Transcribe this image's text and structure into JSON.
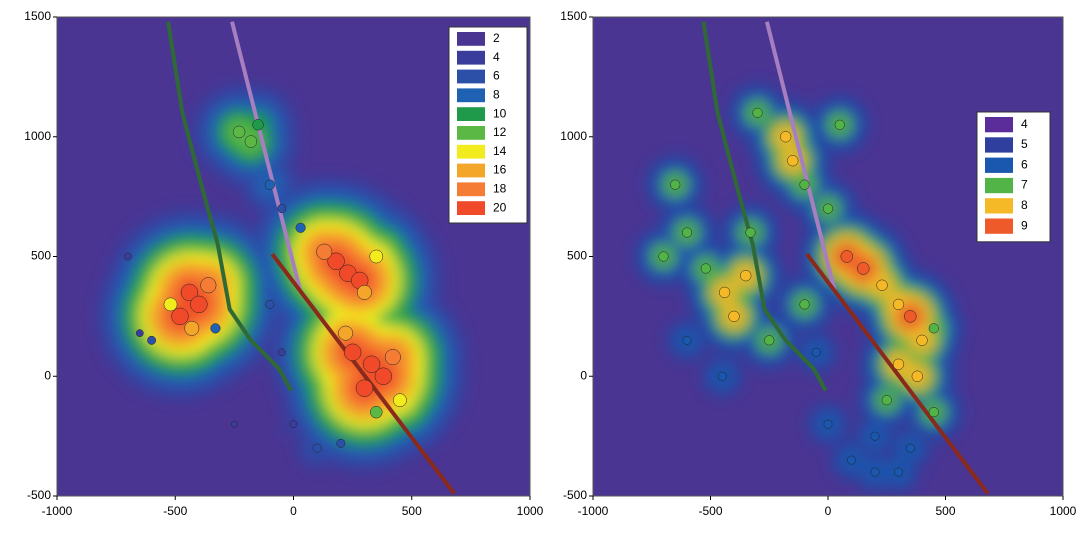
{
  "chart_data": [
    {
      "type": "contour",
      "background": "#4a3593",
      "xlim": [
        -1000,
        1000
      ],
      "ylim": [
        -500,
        1500
      ],
      "xticks": [
        -1000,
        -500,
        0,
        500,
        1000
      ],
      "yticks": [
        -500,
        0,
        500,
        1000,
        1500
      ],
      "levels": [
        2,
        4,
        6,
        8,
        10,
        12,
        14,
        16,
        18,
        20
      ],
      "colors": [
        "#4a3593",
        "#3b3d9c",
        "#2c4fa8",
        "#1f62b3",
        "#1f9a4a",
        "#5cb845",
        "#f2ec1f",
        "#f4a62a",
        "#f47c34",
        "#f04a2a"
      ],
      "wells": [
        {
          "color": "#2f6a36",
          "x": [
            -530,
            -470,
            -390,
            -320,
            -270,
            -180,
            -60,
            -10
          ],
          "y": [
            1480,
            1100,
            800,
            550,
            280,
            150,
            30,
            -60
          ]
        },
        {
          "color": "#a77fc0",
          "x": [
            -260,
            30
          ],
          "y": [
            1480,
            350
          ]
        },
        {
          "color": "#8a2a1c",
          "x": [
            -90,
            680
          ],
          "y": [
            510,
            -490
          ]
        }
      ],
      "events": {
        "x": [
          -440,
          -400,
          -480,
          -360,
          -430,
          -520,
          180,
          230,
          280,
          130,
          300,
          350,
          250,
          330,
          380,
          300,
          420,
          220,
          450,
          350,
          -230,
          -180,
          -150,
          -100,
          -50,
          30,
          -600,
          -700,
          -650,
          -100,
          -50,
          0,
          100,
          200,
          -330,
          -250
        ],
        "y": [
          350,
          300,
          250,
          380,
          200,
          300,
          480,
          430,
          400,
          520,
          350,
          500,
          100,
          50,
          0,
          -50,
          80,
          180,
          -100,
          -150,
          1020,
          980,
          1050,
          800,
          700,
          620,
          150,
          500,
          180,
          300,
          100,
          -200,
          -300,
          -280,
          200,
          -200
        ],
        "values": [
          20,
          20,
          20,
          18,
          16,
          14,
          20,
          20,
          20,
          18,
          16,
          14,
          20,
          20,
          20,
          20,
          18,
          16,
          14,
          12,
          12,
          12,
          10,
          8,
          6,
          8,
          6,
          4,
          4,
          6,
          4,
          4,
          6,
          6,
          8,
          2
        ]
      }
    },
    {
      "type": "contour",
      "background": "#4a3593",
      "xlim": [
        -1000,
        1000
      ],
      "ylim": [
        -500,
        1500
      ],
      "xticks": [
        -1000,
        -500,
        0,
        500,
        1000
      ],
      "yticks": [
        -500,
        0,
        500,
        1000,
        1500
      ],
      "levels": [
        4,
        5,
        6,
        7,
        8,
        9
      ],
      "colors": [
        "#5b2d9a",
        "#2f3f9e",
        "#1a57ae",
        "#52b347",
        "#f5b826",
        "#ef5a2a"
      ],
      "wells": [
        {
          "color": "#2f6a36",
          "x": [
            -530,
            -470,
            -390,
            -320,
            -270,
            -180,
            -60,
            -10
          ],
          "y": [
            1480,
            1100,
            800,
            550,
            280,
            150,
            30,
            -60
          ]
        },
        {
          "color": "#a77fc0",
          "x": [
            -260,
            30
          ],
          "y": [
            1480,
            350
          ]
        },
        {
          "color": "#8a2a1c",
          "x": [
            -90,
            680
          ],
          "y": [
            510,
            -490
          ]
        }
      ],
      "events": {
        "x": [
          -440,
          -400,
          -520,
          -600,
          -350,
          -250,
          80,
          150,
          230,
          300,
          350,
          400,
          300,
          380,
          250,
          450,
          200,
          350,
          -180,
          -150,
          -100,
          0,
          50,
          -600,
          -700,
          -650,
          -100,
          -50,
          0,
          100,
          200,
          300,
          -330,
          -300,
          -450,
          450
        ],
        "y": [
          350,
          250,
          450,
          600,
          420,
          150,
          500,
          450,
          380,
          300,
          250,
          150,
          50,
          0,
          -100,
          -150,
          -250,
          -300,
          1000,
          900,
          800,
          700,
          1050,
          150,
          500,
          800,
          300,
          100,
          -200,
          -350,
          -400,
          -400,
          600,
          1100,
          0,
          200
        ],
        "values": [
          8,
          8,
          7,
          7,
          8,
          7,
          9,
          9,
          8,
          8,
          9,
          8,
          8,
          8,
          7,
          7,
          6,
          6,
          8,
          8,
          7,
          7,
          7,
          6,
          7,
          7,
          7,
          6,
          6,
          6,
          6,
          6,
          7,
          7,
          6,
          7
        ]
      }
    }
  ]
}
